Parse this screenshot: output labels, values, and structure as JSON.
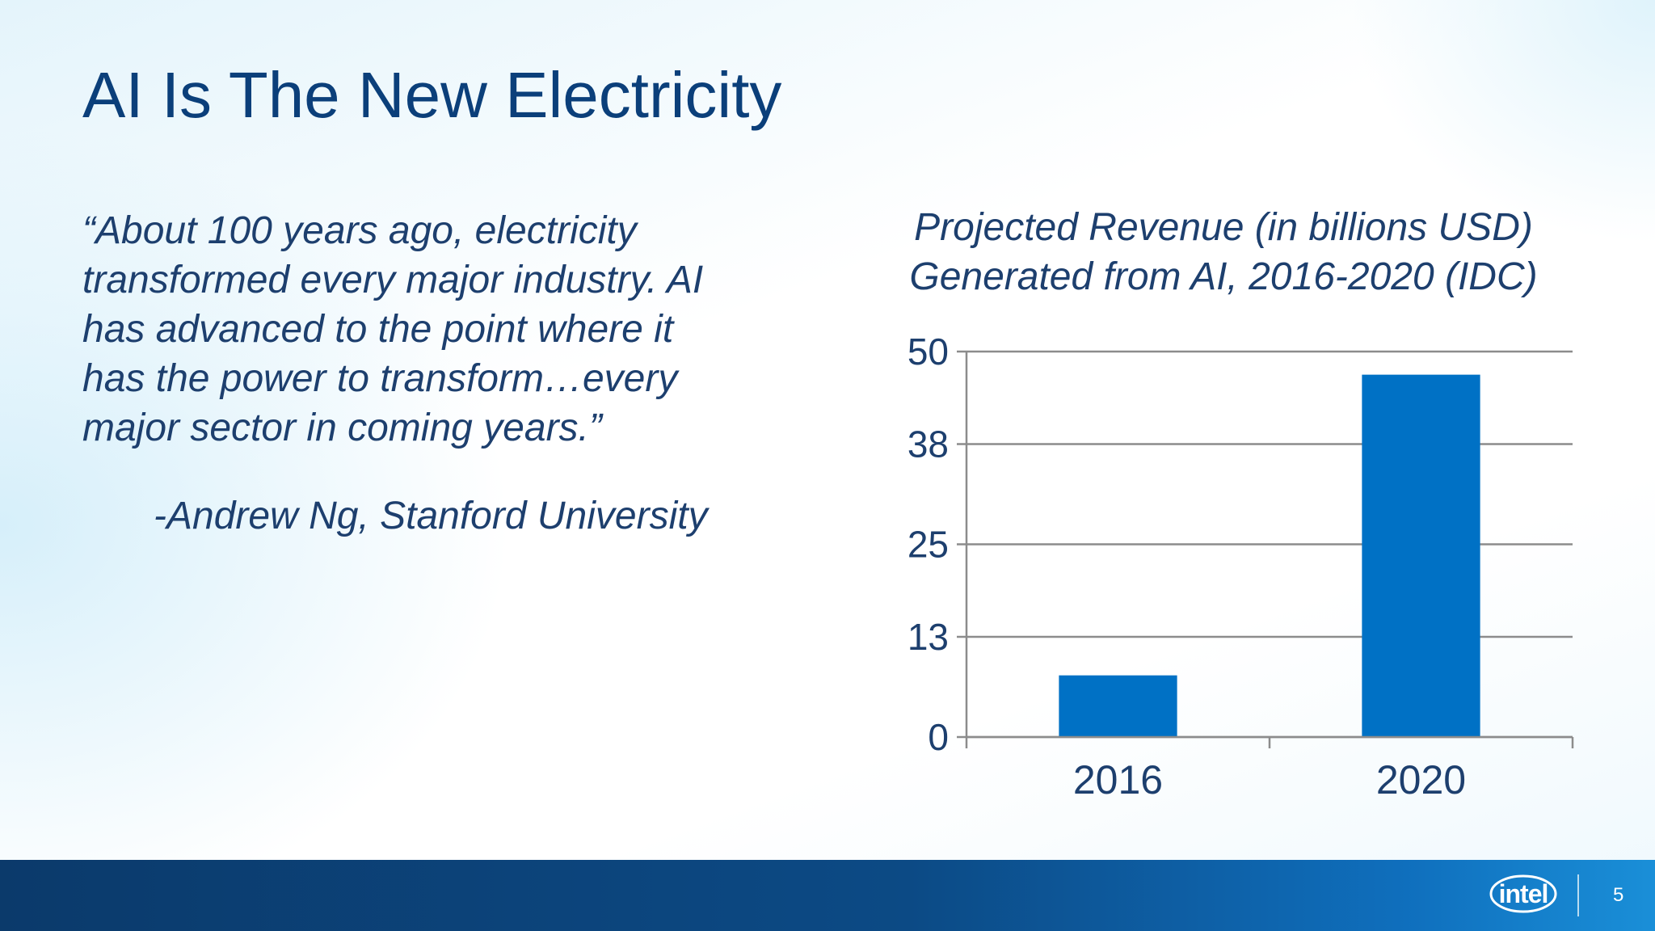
{
  "slide": {
    "title": "AI Is The New Electricity",
    "quote_lines": [
      "“About 100 years ago, electricity",
      "transformed every major industry. AI",
      "has advanced to the point where it",
      "has the power to transform…every",
      "major sector in coming years.”"
    ],
    "attribution": "-Andrew Ng, Stanford University",
    "page_number": "5",
    "logo_text": "intel"
  },
  "colors": {
    "title": "#0b3f7a",
    "bar": "#0071c5",
    "gridline": "#8c8c8c"
  },
  "chart_data": {
    "type": "bar",
    "title_lines": [
      "Projected Revenue (in billions USD)",
      "Generated from AI, 2016-2020 (IDC)"
    ],
    "categories": [
      "2016",
      "2020"
    ],
    "values": [
      8,
      47
    ],
    "yticks": [
      "0",
      "13",
      "25",
      "38",
      "50"
    ],
    "ylim": [
      0,
      50
    ],
    "xlabel": "",
    "ylabel": "",
    "grid": true
  }
}
